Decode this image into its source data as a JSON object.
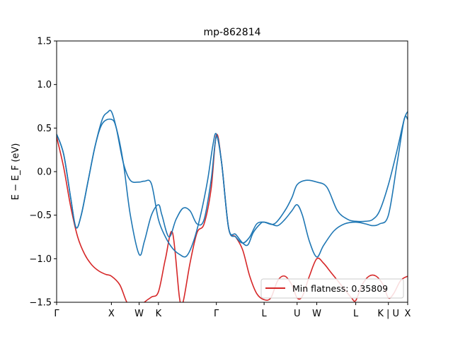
{
  "chart_data": {
    "type": "line",
    "title": "mp-862814",
    "ylabel": "E − E_F (eV)",
    "xlabel": "",
    "xlim": [
      0,
      10
    ],
    "ylim": [
      -1.5,
      1.5
    ],
    "grid": false,
    "legend_position": "lower-right",
    "y_ticks": [
      -1.5,
      -1.0,
      -0.5,
      0.0,
      0.5,
      1.0,
      1.5
    ],
    "y_tick_labels": [
      "−1.5",
      "−1.0",
      "−0.5",
      "0.0",
      "0.5",
      "1.0",
      "1.5"
    ],
    "x_ticks": [
      {
        "pos": 0.0,
        "label": "Γ"
      },
      {
        "pos": 1.56,
        "label": "X"
      },
      {
        "pos": 2.35,
        "label": "W"
      },
      {
        "pos": 2.9,
        "label": "K"
      },
      {
        "pos": 4.55,
        "label": "Γ"
      },
      {
        "pos": 5.91,
        "label": "L"
      },
      {
        "pos": 6.85,
        "label": "U"
      },
      {
        "pos": 7.41,
        "label": "W"
      },
      {
        "pos": 8.52,
        "label": "L"
      },
      {
        "pos": 9.45,
        "label": "K | U"
      },
      {
        "pos": 10.0,
        "label": "X"
      }
    ],
    "series": [
      {
        "name": "Min flatness: 0.35809",
        "color": "#d62728",
        "x": [
          0,
          0.2,
          0.4,
          0.6,
          0.8,
          1.0,
          1.2,
          1.4,
          1.56,
          1.8,
          2.0,
          2.2,
          2.35,
          2.5,
          2.7,
          2.9,
          3.1,
          3.3,
          3.5,
          3.6,
          3.8,
          4.0,
          4.2,
          4.4,
          4.55,
          4.7,
          4.9,
          5.1,
          5.3,
          5.5,
          5.7,
          5.91,
          6.1,
          6.3,
          6.5,
          6.7,
          6.85,
          7.0,
          7.2,
          7.41,
          7.6,
          7.8,
          8.0,
          8.2,
          8.4,
          8.52,
          8.7,
          8.9,
          9.1,
          9.3,
          9.45,
          9.6,
          9.8,
          10.0
        ],
        "y": [
          0.4,
          0.05,
          -0.4,
          -0.75,
          -0.95,
          -1.07,
          -1.14,
          -1.18,
          -1.2,
          -1.3,
          -1.5,
          -1.6,
          -1.58,
          -1.5,
          -1.44,
          -1.38,
          -1.0,
          -0.7,
          -1.45,
          -1.5,
          -1.05,
          -0.7,
          -0.6,
          -0.2,
          0.42,
          0.1,
          -0.65,
          -0.75,
          -0.9,
          -1.2,
          -1.4,
          -1.47,
          -1.45,
          -1.25,
          -1.2,
          -1.3,
          -1.45,
          -1.43,
          -1.2,
          -1.0,
          -1.05,
          -1.15,
          -1.25,
          -1.35,
          -1.45,
          -1.48,
          -1.3,
          -1.2,
          -1.2,
          -1.3,
          -1.45,
          -1.4,
          -1.25,
          -1.2
        ]
      },
      {
        "name": "",
        "color": "#1f77b4",
        "x": [
          0,
          0.2,
          0.4,
          0.55,
          0.7,
          0.9,
          1.1,
          1.3,
          1.45,
          1.56,
          1.7,
          1.9,
          2.1,
          2.35,
          2.5,
          2.7,
          2.9,
          3.1,
          3.3,
          3.5,
          3.7,
          3.9,
          4.1,
          4.3,
          4.45,
          4.55,
          4.7,
          4.9,
          5.1,
          5.3,
          5.45,
          5.6,
          5.8,
          5.91,
          6.2,
          6.5,
          6.7,
          6.85,
          7.1,
          7.41,
          7.7,
          8.0,
          8.3,
          8.52,
          8.8,
          9.0,
          9.2,
          9.45,
          9.7,
          9.9,
          10.0
        ],
        "y": [
          0.43,
          0.2,
          -0.3,
          -0.64,
          -0.5,
          -0.1,
          0.3,
          0.6,
          0.68,
          0.69,
          0.5,
          0.1,
          -0.1,
          -0.12,
          -0.11,
          -0.14,
          -0.55,
          -0.75,
          -0.88,
          -0.95,
          -0.97,
          -0.8,
          -0.5,
          -0.1,
          0.3,
          0.43,
          0.1,
          -0.65,
          -0.72,
          -0.82,
          -0.84,
          -0.7,
          -0.6,
          -0.58,
          -0.6,
          -0.45,
          -0.3,
          -0.15,
          -0.1,
          -0.12,
          -0.18,
          -0.45,
          -0.55,
          -0.57,
          -0.57,
          -0.55,
          -0.45,
          -0.15,
          0.25,
          0.6,
          0.69
        ]
      },
      {
        "name": "",
        "color": "#1f77b4",
        "x": [
          0,
          0.2,
          0.4,
          0.55,
          0.7,
          0.9,
          1.1,
          1.3,
          1.56,
          1.7,
          1.9,
          2.1,
          2.35,
          2.5,
          2.7,
          2.9,
          3.0,
          3.2,
          3.4,
          3.6,
          3.8,
          4.0,
          4.2,
          4.4,
          4.55,
          4.7,
          4.9,
          5.1,
          5.3,
          5.5,
          5.7,
          5.91,
          6.1,
          6.3,
          6.5,
          6.7,
          6.85,
          7.0,
          7.2,
          7.41,
          7.6,
          7.9,
          8.2,
          8.52,
          8.8,
          9.0,
          9.2,
          9.45,
          9.7,
          9.9,
          10.0
        ],
        "y": [
          0.43,
          0.2,
          -0.3,
          -0.64,
          -0.5,
          -0.1,
          0.3,
          0.55,
          0.6,
          0.5,
          0.1,
          -0.5,
          -0.95,
          -0.8,
          -0.5,
          -0.38,
          -0.5,
          -0.75,
          -0.55,
          -0.42,
          -0.45,
          -0.6,
          -0.55,
          -0.1,
          0.4,
          0.1,
          -0.65,
          -0.75,
          -0.82,
          -0.75,
          -0.6,
          -0.58,
          -0.6,
          -0.62,
          -0.55,
          -0.45,
          -0.38,
          -0.5,
          -0.8,
          -0.98,
          -0.85,
          -0.68,
          -0.6,
          -0.58,
          -0.6,
          -0.62,
          -0.6,
          -0.5,
          0.1,
          0.6,
          0.6
        ]
      }
    ]
  }
}
